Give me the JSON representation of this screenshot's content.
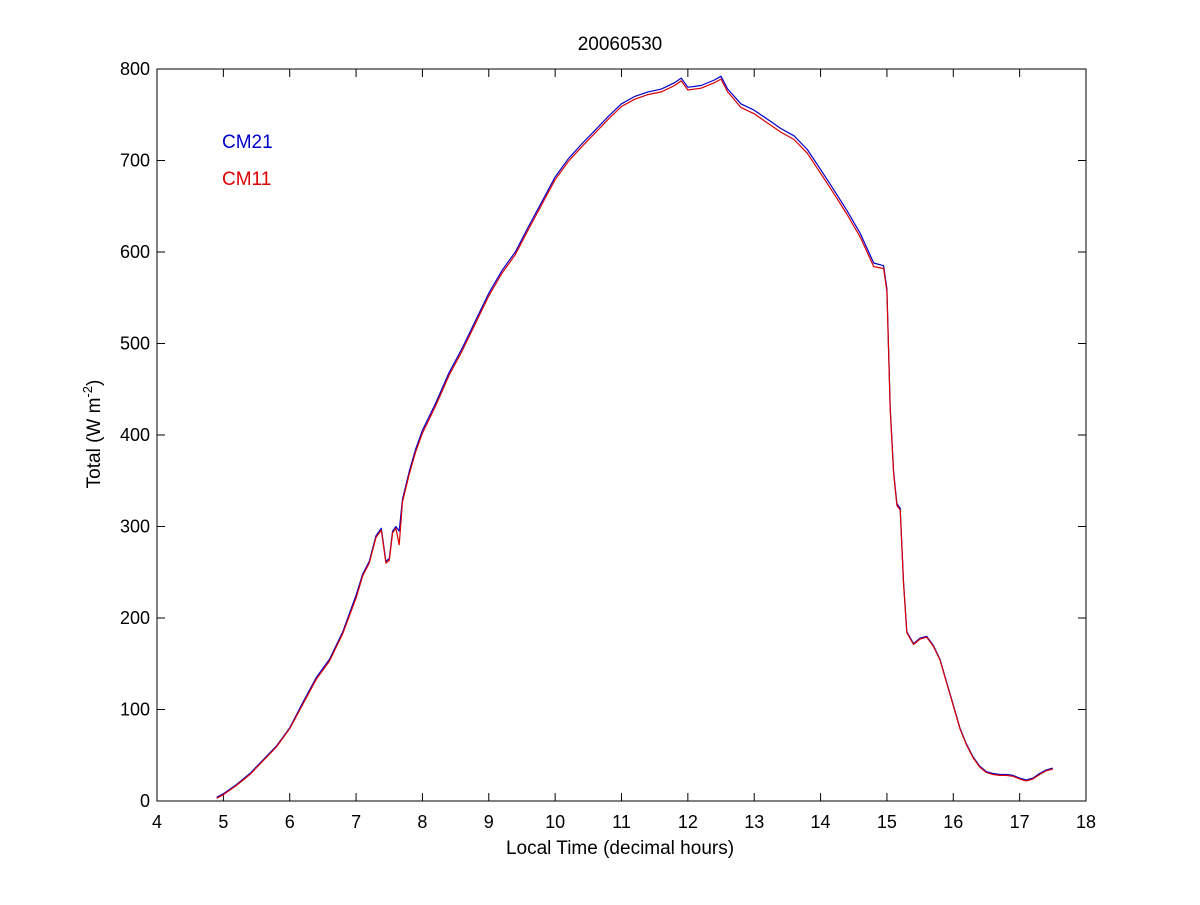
{
  "figure": {
    "title": "20060530",
    "xlabel": "Local Time (decimal hours)",
    "ylabel_main": "Total (W m",
    "ylabel_sup": "-2",
    "ylabel_close": ")"
  },
  "chart_data": {
    "type": "line",
    "title": "20060530",
    "xlabel": "Local Time (decimal hours)",
    "ylabel": "Total (W m-2)",
    "xlim": [
      4,
      18
    ],
    "ylim": [
      0,
      800
    ],
    "xticks": [
      4,
      5,
      6,
      7,
      8,
      9,
      10,
      11,
      12,
      13,
      14,
      15,
      16,
      17,
      18
    ],
    "yticks": [
      0,
      100,
      200,
      300,
      400,
      500,
      600,
      700,
      800
    ],
    "grid": false,
    "legend_position": "top-left",
    "series": [
      {
        "name": "CM21",
        "color": "#0000cc",
        "x": [
          4.9,
          5.0,
          5.2,
          5.4,
          5.6,
          5.8,
          6.0,
          6.2,
          6.4,
          6.6,
          6.8,
          7.0,
          7.1,
          7.2,
          7.3,
          7.38,
          7.45,
          7.5,
          7.55,
          7.6,
          7.65,
          7.7,
          7.8,
          7.9,
          8.0,
          8.2,
          8.4,
          8.6,
          8.8,
          9.0,
          9.2,
          9.4,
          9.6,
          9.8,
          10.0,
          10.2,
          10.4,
          10.6,
          10.8,
          11.0,
          11.2,
          11.4,
          11.6,
          11.8,
          11.9,
          12.0,
          12.2,
          12.4,
          12.5,
          12.6,
          12.8,
          13.0,
          13.2,
          13.4,
          13.6,
          13.8,
          14.0,
          14.2,
          14.4,
          14.6,
          14.8,
          14.95,
          15.0,
          15.05,
          15.1,
          15.15,
          15.2,
          15.25,
          15.3,
          15.4,
          15.5,
          15.6,
          15.7,
          15.8,
          15.9,
          16.0,
          16.1,
          16.2,
          16.3,
          16.4,
          16.5,
          16.6,
          16.7,
          16.8,
          16.9,
          17.0,
          17.1,
          17.2,
          17.3,
          17.4,
          17.5
        ],
        "y": [
          4,
          8,
          18,
          30,
          45,
          60,
          80,
          108,
          135,
          155,
          185,
          225,
          248,
          262,
          290,
          298,
          262,
          265,
          295,
          300,
          295,
          330,
          360,
          385,
          405,
          435,
          468,
          495,
          525,
          555,
          580,
          600,
          628,
          655,
          682,
          702,
          718,
          733,
          748,
          762,
          770,
          775,
          778,
          785,
          790,
          780,
          782,
          788,
          792,
          778,
          762,
          755,
          745,
          735,
          727,
          712,
          690,
          668,
          645,
          620,
          588,
          585,
          560,
          430,
          360,
          325,
          320,
          240,
          185,
          172,
          178,
          180,
          170,
          155,
          130,
          105,
          80,
          62,
          48,
          38,
          32,
          30,
          29,
          29,
          28,
          25,
          23,
          25,
          30,
          34,
          36
        ]
      },
      {
        "name": "CM11",
        "color": "#dd0000",
        "x": [
          4.9,
          5.0,
          5.2,
          5.4,
          5.6,
          5.8,
          6.0,
          6.2,
          6.4,
          6.6,
          6.8,
          7.0,
          7.1,
          7.2,
          7.3,
          7.38,
          7.45,
          7.5,
          7.55,
          7.6,
          7.65,
          7.7,
          7.8,
          7.9,
          8.0,
          8.2,
          8.4,
          8.6,
          8.8,
          9.0,
          9.2,
          9.4,
          9.6,
          9.8,
          10.0,
          10.2,
          10.4,
          10.6,
          10.8,
          11.0,
          11.2,
          11.4,
          11.6,
          11.8,
          11.9,
          12.0,
          12.2,
          12.4,
          12.5,
          12.6,
          12.8,
          13.0,
          13.2,
          13.4,
          13.6,
          13.8,
          14.0,
          14.2,
          14.4,
          14.6,
          14.8,
          14.95,
          15.0,
          15.05,
          15.1,
          15.15,
          15.2,
          15.25,
          15.3,
          15.4,
          15.5,
          15.6,
          15.7,
          15.8,
          15.9,
          16.0,
          16.1,
          16.2,
          16.3,
          16.4,
          16.5,
          16.6,
          16.7,
          16.8,
          16.9,
          17.0,
          17.1,
          17.2,
          17.3,
          17.4,
          17.5
        ],
        "y": [
          3,
          7,
          17,
          29,
          44,
          59,
          79,
          106,
          133,
          153,
          183,
          222,
          246,
          260,
          288,
          296,
          260,
          263,
          293,
          298,
          280,
          327,
          357,
          382,
          402,
          432,
          465,
          492,
          522,
          552,
          577,
          597,
          625,
          652,
          679,
          699,
          715,
          730,
          745,
          759,
          767,
          772,
          775,
          782,
          787,
          777,
          779,
          785,
          789,
          775,
          758,
          751,
          741,
          731,
          723,
          708,
          686,
          664,
          641,
          616,
          584,
          582,
          557,
          428,
          358,
          323,
          318,
          238,
          184,
          171,
          177,
          179,
          169,
          154,
          129,
          104,
          79,
          61,
          47,
          37,
          31,
          29,
          28,
          28,
          27,
          24,
          22,
          24,
          29,
          33,
          35
        ]
      }
    ]
  }
}
